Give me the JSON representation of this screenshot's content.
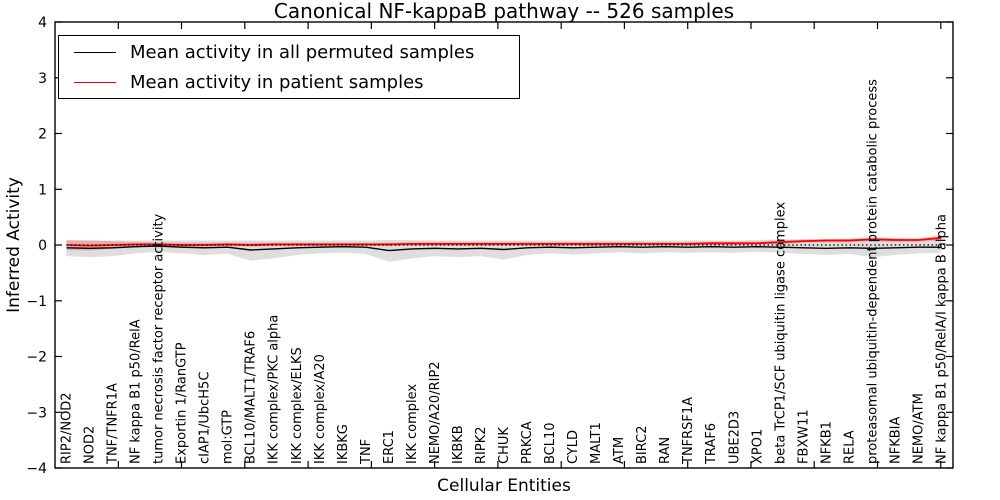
{
  "chart": {
    "title": "Canonical NF-kappaB pathway -- 526 samples",
    "xlabel": "Cellular Entities",
    "ylabel": "Inferred Activity"
  },
  "legend": {
    "items": [
      {
        "label": "Mean activity in all permuted samples",
        "color": "#000000"
      },
      {
        "label": "Mean activity in patient samples",
        "color": "#ff0000"
      }
    ]
  },
  "chart_data": {
    "type": "line",
    "title": "Canonical NF-kappaB pathway -- 526 samples",
    "xlabel": "Cellular Entities",
    "ylabel": "Inferred Activity",
    "ylim": [
      -4,
      4
    ],
    "yticks": [
      4,
      3,
      2,
      1,
      0,
      -1,
      -2,
      -3,
      -4
    ],
    "grid": false,
    "legend_position": "upper left",
    "zero_line": {
      "y": 0,
      "style": "dotted",
      "color": "#000000"
    },
    "categories": [
      "RIP2/NOD2",
      "NOD2",
      "TNF/TNFR1A",
      "NF kappa B1 p50/RelA",
      "tumor necrosis factor receptor activity",
      "Exportin 1/RanGTP",
      "cIAP1/UbcH5C",
      "mol:GTP",
      "BCL10/MALT1/TRAF6",
      "IKK complex/PKC alpha",
      "IKK complex/ELKS",
      "IKK complex/A20",
      "IKBKG",
      "TNF",
      "ERC1",
      "IKK complex",
      "NEMO/A20/RIP2",
      "IKBKB",
      "RIPK2",
      "CHUK",
      "PRKCA",
      "BCL10",
      "CYLD",
      "MALT1",
      "ATM",
      "BIRC2",
      "RAN",
      "TNFRSF1A",
      "TRAF6",
      "UBE2D3",
      "XPO1",
      "beta TrCP1/SCF ubiquitin ligase complex",
      "FBXW11",
      "NFKB1",
      "RELA",
      "proteasomal ubiquitin-dependent protein catabolic process",
      "NFKBIA",
      "NEMO/ATM",
      "NF kappa B1 p50/RelA/I kappa B alpha"
    ],
    "series": [
      {
        "name": "Mean activity in all permuted samples",
        "color": "#000000",
        "band_opacity": 0.13,
        "values": [
          -0.05,
          -0.06,
          -0.05,
          -0.03,
          -0.02,
          -0.04,
          -0.05,
          -0.04,
          -0.09,
          -0.07,
          -0.05,
          -0.04,
          -0.03,
          -0.04,
          -0.1,
          -0.07,
          -0.06,
          -0.07,
          -0.06,
          -0.08,
          -0.05,
          -0.04,
          -0.05,
          -0.04,
          -0.03,
          -0.04,
          -0.03,
          -0.04,
          -0.03,
          -0.04,
          -0.03,
          -0.04,
          -0.05,
          -0.06,
          -0.05,
          -0.06,
          -0.05,
          -0.04,
          -0.04
        ],
        "band_low": [
          -0.2,
          -0.22,
          -0.2,
          -0.15,
          -0.12,
          -0.15,
          -0.18,
          -0.16,
          -0.28,
          -0.24,
          -0.18,
          -0.15,
          -0.14,
          -0.16,
          -0.3,
          -0.24,
          -0.2,
          -0.22,
          -0.2,
          -0.26,
          -0.18,
          -0.15,
          -0.17,
          -0.15,
          -0.13,
          -0.15,
          -0.13,
          -0.14,
          -0.13,
          -0.14,
          -0.12,
          -0.14,
          -0.16,
          -0.18,
          -0.16,
          -0.22,
          -0.18,
          -0.15,
          -0.14
        ],
        "band_high": [
          0.08,
          0.08,
          0.08,
          0.08,
          0.08,
          0.08,
          0.08,
          0.08,
          0.08,
          0.08,
          0.08,
          0.08,
          0.08,
          0.08,
          0.09,
          0.09,
          0.08,
          0.08,
          0.08,
          0.08,
          0.08,
          0.08,
          0.08,
          0.08,
          0.08,
          0.08,
          0.08,
          0.08,
          0.08,
          0.08,
          0.09,
          0.1,
          0.1,
          0.1,
          0.11,
          0.15,
          0.12,
          0.1,
          0.1
        ]
      },
      {
        "name": "Mean activity in patient samples",
        "color": "#ff0000",
        "band_opacity": 0.22,
        "values": [
          0.0,
          -0.01,
          0.0,
          0.01,
          0.01,
          0.0,
          0.0,
          0.01,
          0.0,
          0.01,
          0.01,
          0.01,
          0.01,
          0.01,
          0.01,
          0.02,
          0.02,
          0.02,
          0.02,
          0.02,
          0.02,
          0.02,
          0.02,
          0.02,
          0.02,
          0.02,
          0.02,
          0.02,
          0.03,
          0.03,
          0.03,
          0.05,
          0.07,
          0.08,
          0.08,
          0.1,
          0.09,
          0.09,
          0.13
        ],
        "band_low": [
          -0.09,
          -0.1,
          -0.07,
          -0.04,
          -0.03,
          -0.03,
          -0.03,
          -0.02,
          -0.03,
          -0.02,
          -0.02,
          -0.02,
          -0.02,
          -0.02,
          -0.02,
          -0.01,
          -0.01,
          -0.01,
          -0.01,
          -0.01,
          -0.01,
          -0.01,
          -0.01,
          -0.01,
          -0.01,
          0.0,
          0.0,
          0.0,
          0.0,
          0.0,
          0.01,
          0.02,
          0.04,
          0.05,
          0.05,
          0.07,
          0.06,
          0.06,
          0.09
        ],
        "band_high": [
          0.09,
          0.08,
          0.07,
          0.05,
          0.05,
          0.04,
          0.04,
          0.04,
          0.04,
          0.04,
          0.04,
          0.04,
          0.04,
          0.04,
          0.04,
          0.05,
          0.05,
          0.05,
          0.05,
          0.05,
          0.05,
          0.05,
          0.05,
          0.05,
          0.05,
          0.05,
          0.05,
          0.05,
          0.06,
          0.06,
          0.06,
          0.08,
          0.1,
          0.11,
          0.11,
          0.13,
          0.12,
          0.12,
          0.17
        ]
      }
    ]
  }
}
